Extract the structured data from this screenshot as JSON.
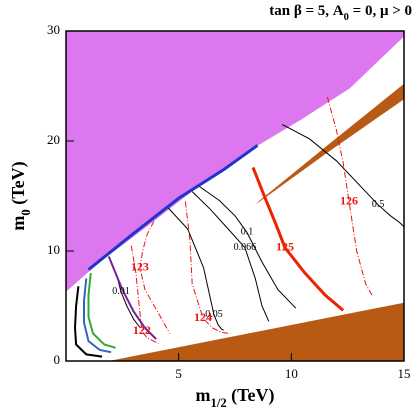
{
  "chart_data": {
    "type": "contour",
    "title": [
      "tan β = 5, A",
      "0",
      " = 0, μ > 0"
    ],
    "x_label": [
      "m",
      "1/2",
      " (TeV)"
    ],
    "y_label": [
      "m",
      "0",
      " (TeV)"
    ],
    "xlim": [
      0,
      15
    ],
    "ylim": [
      0,
      30
    ],
    "xticks": [
      5,
      10,
      15
    ],
    "yticks": [
      0,
      10,
      20,
      30
    ],
    "regions": [
      {
        "color": "#dd77f0",
        "x": [
          0,
          1.5,
          3.7,
          5.95,
          8.2,
          10.4,
          12.6,
          15,
          15,
          0
        ],
        "y": [
          6.3,
          9,
          12.4,
          16,
          19.2,
          21.9,
          24.8,
          29.5,
          30,
          30
        ]
      },
      {
        "color": "#b85a14",
        "x": [
          1.9,
          15,
          15
        ],
        "y": [
          0,
          5.3,
          0
        ]
      },
      {
        "color": "#b85a14",
        "x": [
          8.4,
          11.5,
          15,
          15,
          11.6,
          8.6
        ],
        "y": [
          14.2,
          18.8,
          23.8,
          25.2,
          19.6,
          14.6
        ]
      }
    ],
    "contours": [
      {
        "color": "#000000",
        "width": 1,
        "dashed": false,
        "label": "0.5",
        "x": [
          9.6,
          10.8,
          12.0,
          13.85,
          14.4,
          14.8,
          15
        ],
        "y": [
          21.5,
          20.2,
          18.2,
          14.2,
          13.2,
          12.6,
          12.2
        ]
      },
      {
        "color": "#000000",
        "width": 1,
        "dashed": false,
        "label": "0.1",
        "x": [
          5.9,
          6.8,
          7.5,
          8.03,
          8.7,
          9.4,
          10.2
        ],
        "y": [
          15.9,
          14.6,
          13.2,
          11.7,
          9.0,
          6.5,
          4.8
        ]
      },
      {
        "color": "#000000",
        "width": 1,
        "dashed": false,
        "label": "0.066",
        "x": [
          5.6,
          6.4,
          7.2,
          7.94,
          8.4,
          8.7,
          9.0
        ],
        "y": [
          15.4,
          13.8,
          12.0,
          10.3,
          7.5,
          5.0,
          3.6
        ]
      },
      {
        "color": "#000000",
        "width": 1,
        "dashed": false,
        "label": "0.05",
        "x": [
          4.5,
          5.4,
          6.1,
          6.57,
          6.75,
          6.9,
          7.0
        ],
        "y": [
          14,
          12,
          8.5,
          4.2,
          3.3,
          2.9,
          2.8
        ]
      },
      {
        "color": "#000000",
        "width": 1,
        "dashed": false,
        "label": "0.01",
        "x": [
          1.9,
          2.1,
          2.3,
          2.44,
          2.7,
          3.0,
          3.3
        ],
        "y": [
          9.5,
          8.6,
          7.4,
          6.3,
          5.0,
          3.8,
          3.0
        ]
      },
      {
        "color": "#ee1111",
        "width": 1,
        "dashed": true,
        "label": "122",
        "x": [
          2.9,
          3.1,
          3.25,
          3.37,
          3.6,
          3.9,
          4.1
        ],
        "y": [
          10.5,
          8,
          5,
          2.7,
          2.1,
          1.8,
          1.6
        ]
      },
      {
        "color": "#ee1111",
        "width": 1,
        "dashed": true,
        "label": "123",
        "x": [
          3.9,
          3.6,
          3.4,
          3.28,
          3.5,
          4.2,
          4.6
        ],
        "y": [
          12.7,
          11.5,
          10,
          8.5,
          6.5,
          4,
          2.5
        ]
      },
      {
        "color": "#ee1111",
        "width": 1,
        "dashed": true,
        "label": "124",
        "x": [
          5.3,
          5.5,
          5.6,
          6.08,
          6.5,
          6.9,
          7.3
        ],
        "y": [
          14.5,
          11,
          7,
          3.9,
          3.0,
          2.6,
          2.5
        ]
      },
      {
        "color": "#ee2200",
        "width": 3,
        "dashed": false,
        "label": "125",
        "x": [
          8.3,
          8.8,
          9.3,
          9.72,
          10.6,
          11.5,
          12.3
        ],
        "y": [
          17.6,
          15.0,
          12.5,
          10.3,
          8.0,
          6.0,
          4.6
        ]
      },
      {
        "color": "#ee1111",
        "width": 1,
        "dashed": true,
        "label": "126",
        "x": [
          11.6,
          12.0,
          12.3,
          12.56,
          12.9,
          13.3,
          13.6
        ],
        "y": [
          24,
          21,
          18,
          14.5,
          10,
          7,
          5.9
        ]
      },
      {
        "color": "#000000",
        "width": 2,
        "dashed": false,
        "x": [
          0.55,
          0.45,
          0.4,
          0.45,
          0.9,
          1.6
        ],
        "y": [
          6.8,
          5,
          3,
          1.5,
          0.6,
          0.4
        ]
      },
      {
        "color": "#3366bb",
        "width": 2,
        "dashed": false,
        "x": [
          0.9,
          0.8,
          0.8,
          1.0,
          1.5,
          2.0
        ],
        "y": [
          7.5,
          5.5,
          3.5,
          1.8,
          1.0,
          0.8
        ]
      },
      {
        "color": "#33aa33",
        "width": 2,
        "dashed": false,
        "x": [
          1.1,
          1.0,
          1.0,
          1.2,
          1.7,
          2.2
        ],
        "y": [
          8,
          6,
          4,
          2.5,
          1.5,
          1.2
        ]
      },
      {
        "color": "#772299",
        "width": 2,
        "dashed": false,
        "x": [
          1.9,
          2.1,
          2.5,
          3.0,
          3.5,
          4.0
        ],
        "y": [
          9.5,
          8.5,
          6.5,
          4.5,
          3.0,
          2.0
        ]
      },
      {
        "color": "#2233cc",
        "width": 3,
        "dashed": false,
        "x": [
          1.0,
          3.0,
          5.0,
          7.0,
          8.5
        ],
        "y": [
          8.3,
          11.6,
          14.8,
          17.4,
          19.6
        ]
      }
    ]
  }
}
